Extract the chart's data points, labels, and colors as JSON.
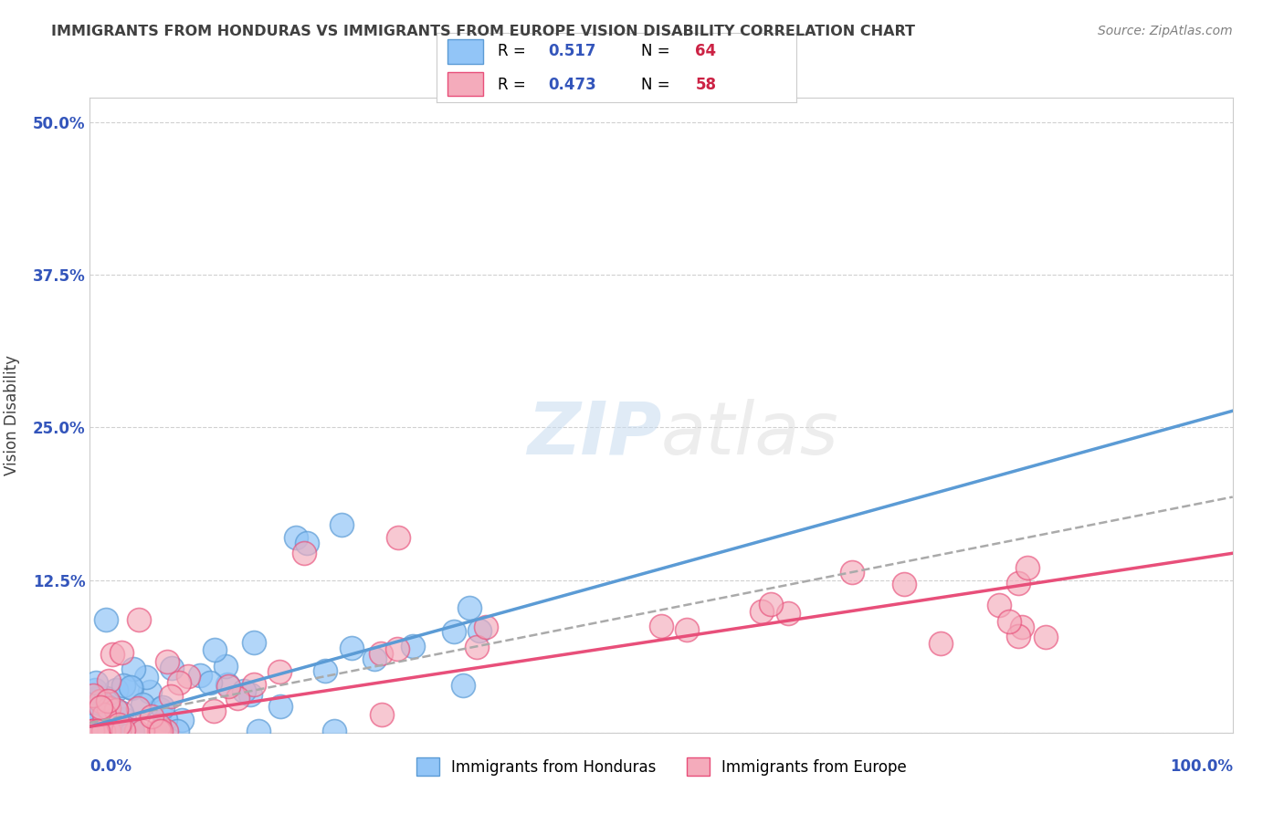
{
  "title": "IMMIGRANTS FROM HONDURAS VS IMMIGRANTS FROM EUROPE VISION DISABILITY CORRELATION CHART",
  "source": "Source: ZipAtlas.com",
  "ylabel": "Vision Disability",
  "yticks": [
    0.0,
    0.125,
    0.25,
    0.375,
    0.5
  ],
  "ytick_labels": [
    "",
    "12.5%",
    "25.0%",
    "37.5%",
    "50.0%"
  ],
  "xlim": [
    0.0,
    1.0
  ],
  "ylim": [
    0.0,
    0.52
  ],
  "honduras_R": 0.517,
  "honduras_N": 64,
  "europe_R": 0.473,
  "europe_N": 58,
  "blue_color": "#92C5F7",
  "blue_dark": "#5B9BD5",
  "pink_color": "#F4ABBB",
  "pink_dark": "#E84F7A",
  "legend_label1": "Immigrants from Honduras",
  "legend_label2": "Immigrants from Europe",
  "title_color": "#404040",
  "source_color": "#808080",
  "axis_color": "#404040",
  "grid_color": "#D0D0D0",
  "r_color": "#3355BB",
  "n_color": "#CC2244",
  "background_color": "#FFFFFF",
  "honduras_slope": 0.2585,
  "honduras_intercept": 0.005,
  "europe_slope": 0.1419,
  "europe_intercept": 0.005,
  "dashed_slope": 0.185,
  "dashed_intercept": 0.008
}
